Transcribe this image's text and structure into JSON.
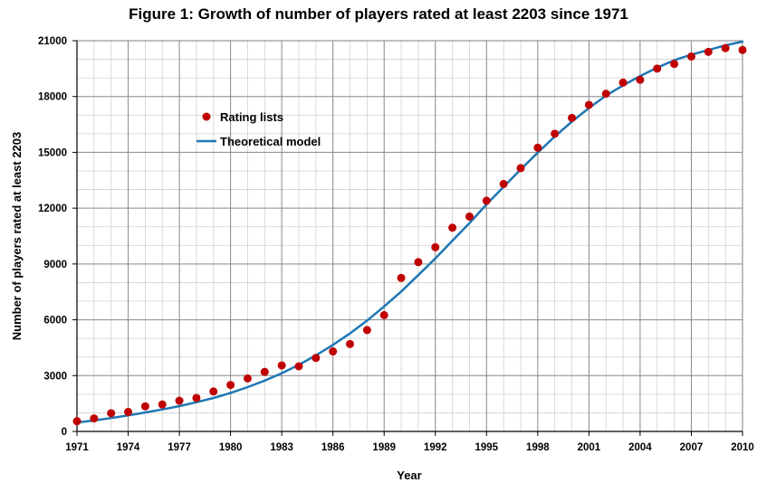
{
  "chart_data": {
    "type": "scatter",
    "title": "Figure 1: Growth of number of players rated at least 2203 since 1971",
    "xlabel": "Year",
    "ylabel": "Number of players rated at least 2203",
    "xlim": [
      1971,
      2010
    ],
    "ylim": [
      0,
      21000
    ],
    "x_ticks": [
      1971,
      1974,
      1977,
      1980,
      1983,
      1986,
      1989,
      1992,
      1995,
      1998,
      2001,
      2004,
      2007,
      2010
    ],
    "y_ticks": [
      0,
      3000,
      6000,
      9000,
      12000,
      15000,
      18000,
      21000
    ],
    "grid": true,
    "legend_position": "upper-left",
    "series": [
      {
        "name": "Rating lists",
        "kind": "markers",
        "color": "#c00000",
        "points": [
          [
            1971,
            550
          ],
          [
            1972,
            700
          ],
          [
            1973,
            980
          ],
          [
            1974,
            1050
          ],
          [
            1975,
            1350
          ],
          [
            1976,
            1450
          ],
          [
            1977,
            1650
          ],
          [
            1978,
            1800
          ],
          [
            1979,
            2150
          ],
          [
            1980,
            2500
          ],
          [
            1981,
            2850
          ],
          [
            1982,
            3200
          ],
          [
            1983,
            3550
          ],
          [
            1984,
            3500
          ],
          [
            1985,
            3950
          ],
          [
            1986,
            4300
          ],
          [
            1987,
            4700
          ],
          [
            1988,
            5450
          ],
          [
            1989,
            6250
          ],
          [
            1990,
            8250
          ],
          [
            1991,
            9100
          ],
          [
            1992,
            9900
          ],
          [
            1993,
            10950
          ],
          [
            1994,
            11550
          ],
          [
            1995,
            12400
          ],
          [
            1996,
            13300
          ],
          [
            1997,
            14150
          ],
          [
            1998,
            15250
          ],
          [
            1999,
            16000
          ],
          [
            2000,
            16850
          ],
          [
            2001,
            17550
          ],
          [
            2002,
            18150
          ],
          [
            2003,
            18750
          ],
          [
            2004,
            18900
          ],
          [
            2005,
            19500
          ],
          [
            2006,
            19750
          ],
          [
            2007,
            20150
          ],
          [
            2008,
            20400
          ],
          [
            2009,
            20600
          ],
          [
            2010,
            20500
          ]
        ]
      },
      {
        "name": "Theoretical model",
        "kind": "line",
        "color": "#1f77b4",
        "points": [
          [
            1971,
            480
          ],
          [
            1972,
            590
          ],
          [
            1973,
            720
          ],
          [
            1974,
            860
          ],
          [
            1975,
            1020
          ],
          [
            1976,
            1180
          ],
          [
            1977,
            1360
          ],
          [
            1978,
            1570
          ],
          [
            1979,
            1800
          ],
          [
            1980,
            2070
          ],
          [
            1981,
            2380
          ],
          [
            1982,
            2730
          ],
          [
            1983,
            3130
          ],
          [
            1984,
            3580
          ],
          [
            1985,
            4090
          ],
          [
            1986,
            4650
          ],
          [
            1987,
            5270
          ],
          [
            1988,
            5960
          ],
          [
            1989,
            6720
          ],
          [
            1990,
            7520
          ],
          [
            1991,
            8400
          ],
          [
            1992,
            9300
          ],
          [
            1993,
            10250
          ],
          [
            1994,
            11200
          ],
          [
            1995,
            12200
          ],
          [
            1996,
            13150
          ],
          [
            1997,
            14080
          ],
          [
            1998,
            14980
          ],
          [
            1999,
            15850
          ],
          [
            2000,
            16650
          ],
          [
            2001,
            17380
          ],
          [
            2002,
            18050
          ],
          [
            2003,
            18600
          ],
          [
            2004,
            19100
          ],
          [
            2005,
            19550
          ],
          [
            2006,
            19950
          ],
          [
            2007,
            20250
          ],
          [
            2008,
            20500
          ],
          [
            2009,
            20750
          ],
          [
            2010,
            20950
          ]
        ]
      }
    ]
  }
}
